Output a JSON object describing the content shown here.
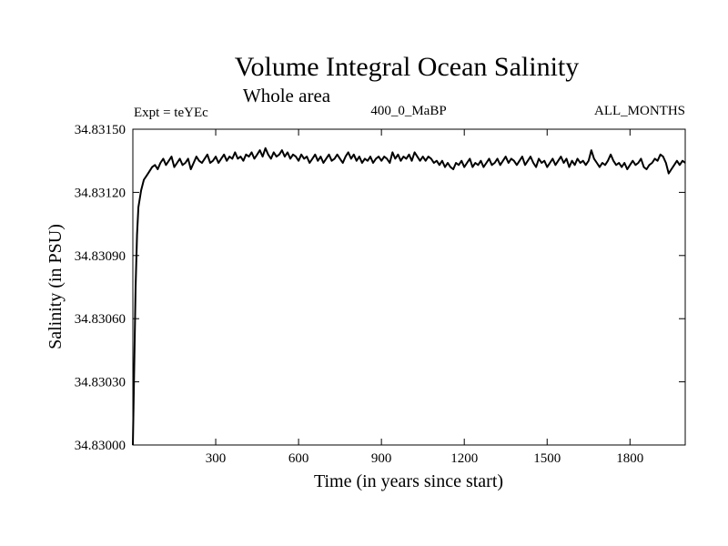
{
  "chart_data": {
    "type": "line",
    "title": "Volume Integral Ocean Salinity",
    "subtitle": "Whole area",
    "annotations": {
      "left": "Expt = teYEc",
      "center": "400_0_MaBP",
      "right": "ALL_MONTHS"
    },
    "xlabel": "Time (in years since start)",
    "ylabel": "Salinity (in PSU)",
    "xlim": [
      0,
      2000
    ],
    "ylim": [
      34.83,
      34.8315
    ],
    "xticks": [
      300,
      600,
      900,
      1200,
      1500,
      1800
    ],
    "xtick_labels": [
      "300",
      "600",
      "900",
      "1200",
      "1500",
      "1800"
    ],
    "yticks": [
      34.83,
      34.8303,
      34.8306,
      34.8309,
      34.8312,
      34.8315
    ],
    "ytick_labels": [
      "34.83000",
      "34.83030",
      "34.83060",
      "34.83090",
      "34.83120",
      "34.83150"
    ],
    "grid": false,
    "series": [
      {
        "name": "Salinity",
        "x": [
          0,
          5,
          10,
          15,
          20,
          30,
          40,
          50,
          60,
          70,
          80,
          90,
          100,
          110,
          120,
          130,
          140,
          150,
          160,
          170,
          180,
          190,
          200,
          210,
          220,
          230,
          240,
          250,
          260,
          270,
          280,
          290,
          300,
          310,
          320,
          330,
          340,
          350,
          360,
          370,
          380,
          390,
          400,
          410,
          420,
          430,
          440,
          450,
          460,
          470,
          480,
          490,
          500,
          510,
          520,
          530,
          540,
          550,
          560,
          570,
          580,
          590,
          600,
          610,
          620,
          630,
          640,
          650,
          660,
          670,
          680,
          690,
          700,
          710,
          720,
          730,
          740,
          750,
          760,
          770,
          780,
          790,
          800,
          810,
          820,
          830,
          840,
          850,
          860,
          870,
          880,
          890,
          900,
          910,
          920,
          930,
          940,
          950,
          960,
          970,
          980,
          990,
          1000,
          1010,
          1020,
          1030,
          1040,
          1050,
          1060,
          1070,
          1080,
          1090,
          1100,
          1110,
          1120,
          1130,
          1140,
          1150,
          1160,
          1170,
          1180,
          1190,
          1200,
          1210,
          1220,
          1230,
          1240,
          1250,
          1260,
          1270,
          1280,
          1290,
          1300,
          1310,
          1320,
          1330,
          1340,
          1350,
          1360,
          1370,
          1380,
          1390,
          1400,
          1410,
          1420,
          1430,
          1440,
          1450,
          1460,
          1470,
          1480,
          1490,
          1500,
          1510,
          1520,
          1530,
          1540,
          1550,
          1560,
          1570,
          1580,
          1590,
          1600,
          1610,
          1620,
          1630,
          1640,
          1650,
          1660,
          1670,
          1680,
          1690,
          1700,
          1710,
          1720,
          1730,
          1740,
          1750,
          1760,
          1770,
          1780,
          1790,
          1800,
          1810,
          1820,
          1830,
          1840,
          1850,
          1860,
          1870,
          1880,
          1890,
          1900,
          1910,
          1920,
          1930,
          1940,
          1950,
          1960,
          1970,
          1980,
          1990,
          2000
        ],
        "values": [
          34.83,
          34.83037,
          34.83075,
          34.831,
          34.83113,
          34.83121,
          34.83126,
          34.83128,
          34.8313,
          34.83132,
          34.83133,
          34.83131,
          34.83134,
          34.83136,
          34.83133,
          34.83135,
          34.83137,
          34.83132,
          34.83134,
          34.83136,
          34.83133,
          34.83134,
          34.83136,
          34.83131,
          34.83134,
          34.83137,
          34.83135,
          34.83134,
          34.83136,
          34.83138,
          34.83134,
          34.83135,
          34.83137,
          34.83134,
          34.83136,
          34.83138,
          34.83135,
          34.83137,
          34.83136,
          34.83139,
          34.83136,
          34.83137,
          34.83135,
          34.83138,
          34.83137,
          34.83139,
          34.83136,
          34.83138,
          34.8314,
          34.83137,
          34.83141,
          34.83138,
          34.83136,
          34.83139,
          34.83137,
          34.83138,
          34.8314,
          34.83137,
          34.83139,
          34.83136,
          34.83138,
          34.83137,
          34.83135,
          34.83138,
          34.83136,
          34.83137,
          34.83134,
          34.83136,
          34.83138,
          34.83135,
          34.83137,
          34.83134,
          34.83136,
          34.83138,
          34.83135,
          34.83136,
          34.83138,
          34.83136,
          34.83134,
          34.83137,
          34.83139,
          34.83136,
          34.83138,
          34.83135,
          34.83137,
          34.83134,
          34.83136,
          34.83135,
          34.83137,
          34.83134,
          34.83136,
          34.83137,
          34.83135,
          34.83137,
          34.83136,
          34.83134,
          34.83139,
          34.83136,
          34.83138,
          34.83135,
          34.83137,
          34.83136,
          34.83138,
          34.83135,
          34.83139,
          34.83137,
          34.83135,
          34.83137,
          34.83135,
          34.83137,
          34.83136,
          34.83134,
          34.83135,
          34.83133,
          34.83135,
          34.83132,
          34.83134,
          34.83132,
          34.83131,
          34.83134,
          34.83133,
          34.83135,
          34.83132,
          34.83134,
          34.83136,
          34.83132,
          34.83134,
          34.83133,
          34.83135,
          34.83132,
          34.83134,
          34.83136,
          34.83133,
          34.83134,
          34.83136,
          34.83133,
          34.83135,
          34.83137,
          34.83134,
          34.83136,
          34.83135,
          34.83133,
          34.83135,
          34.83137,
          34.83133,
          34.83135,
          34.83137,
          34.83134,
          34.83132,
          34.83136,
          34.83134,
          34.83135,
          34.83132,
          34.83134,
          34.83136,
          34.83133,
          34.83135,
          34.83137,
          34.83134,
          34.83136,
          34.83132,
          34.83135,
          34.83133,
          34.83136,
          34.83134,
          34.83135,
          34.83133,
          34.83135,
          34.8314,
          34.83136,
          34.83134,
          34.83132,
          34.83134,
          34.83133,
          34.83135,
          34.83138,
          34.83135,
          34.83133,
          34.83134,
          34.83132,
          34.83134,
          34.83131,
          34.83133,
          34.83135,
          34.83133,
          34.83134,
          34.83136,
          34.83132,
          34.83131,
          34.83133,
          34.83134,
          34.83136,
          34.83135,
          34.83138,
          34.83137,
          34.83134,
          34.83129,
          34.83131,
          34.83133,
          34.83135,
          34.83133,
          34.83135,
          34.83134
        ]
      }
    ]
  }
}
